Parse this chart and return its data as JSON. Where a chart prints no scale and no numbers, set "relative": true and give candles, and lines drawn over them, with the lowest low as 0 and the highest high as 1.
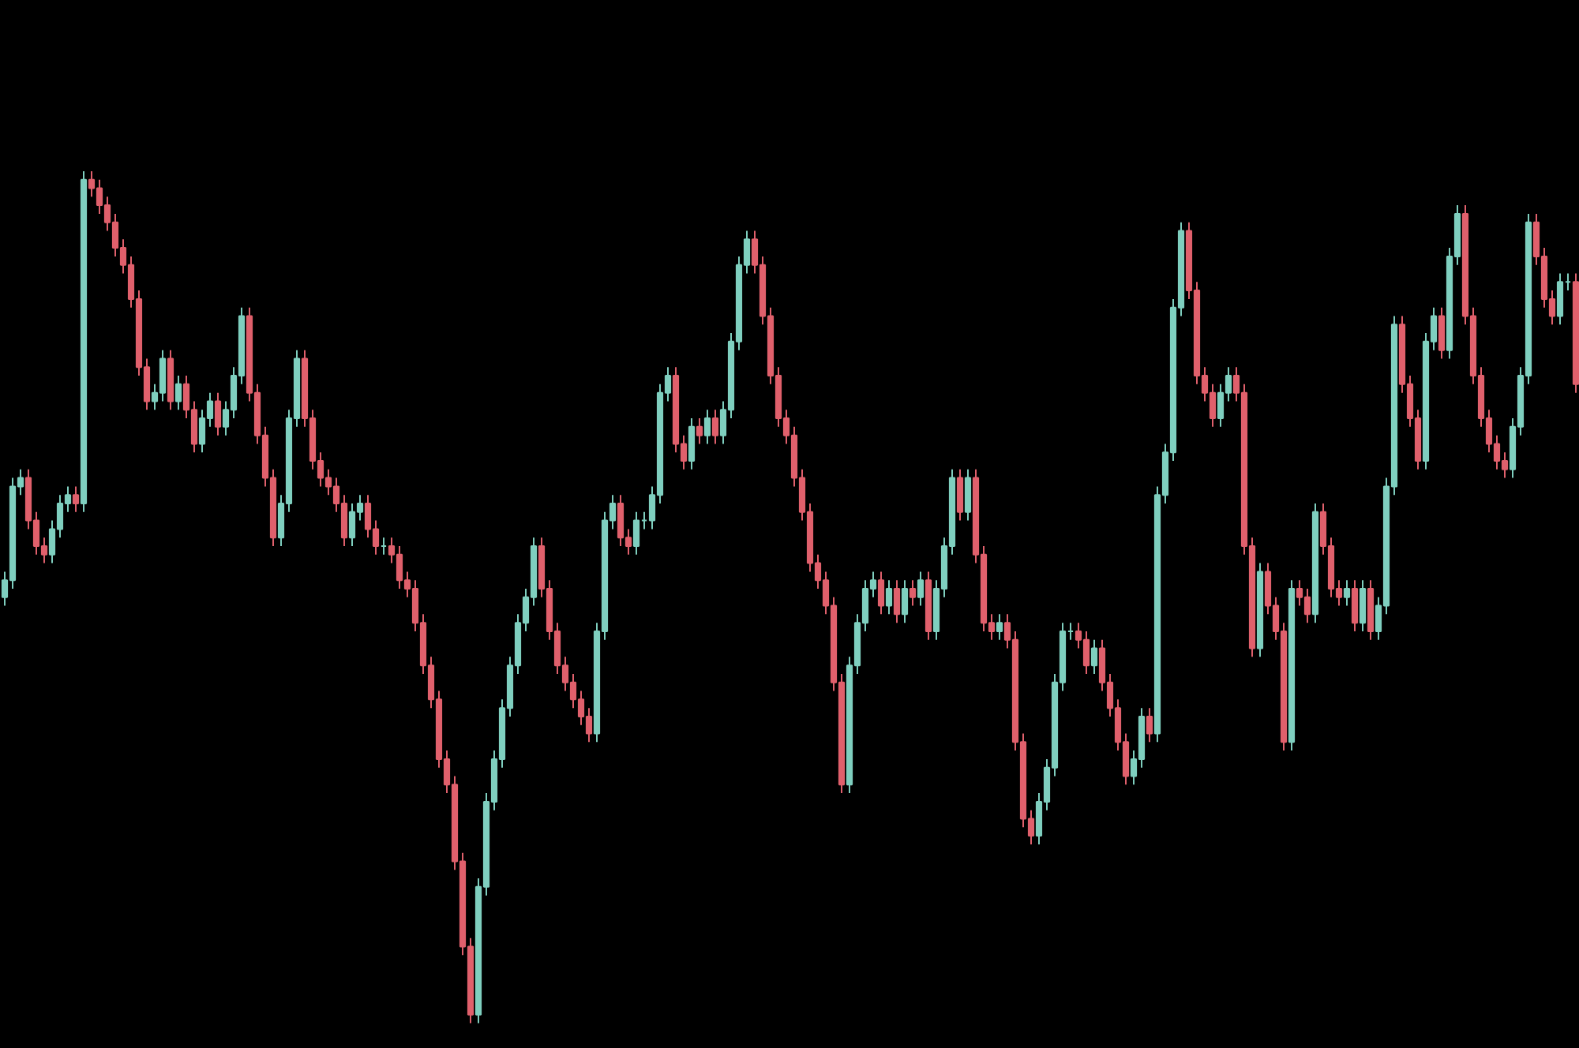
{
  "chart_data": {
    "type": "candlestick",
    "relative": true,
    "tick_labels": false,
    "categories": [
      null,
      null,
      null,
      null,
      null,
      null,
      null,
      null,
      null,
      null,
      null,
      null,
      null,
      null,
      null,
      null,
      null,
      null,
      null,
      null,
      null,
      null,
      null,
      null,
      null,
      null,
      null,
      null,
      null,
      null,
      null,
      null,
      null,
      null,
      null,
      null,
      null,
      null,
      null,
      null,
      null,
      null,
      null,
      null,
      null,
      null,
      null,
      null,
      null,
      null,
      null,
      null,
      null,
      null,
      null,
      null,
      null,
      null,
      null,
      null,
      null,
      null,
      null,
      null,
      null,
      null,
      null,
      null,
      null,
      null,
      null,
      null,
      null,
      null,
      null,
      null,
      null,
      null,
      null,
      null,
      null,
      null,
      null,
      null,
      null,
      null,
      null,
      null,
      null,
      null,
      null,
      null,
      null,
      null,
      null,
      null,
      null,
      null,
      null,
      null,
      null,
      null,
      null,
      null,
      null,
      null,
      null,
      null,
      null,
      null,
      null,
      null,
      null,
      null,
      null,
      null,
      null,
      null,
      null,
      null,
      null,
      null,
      null,
      null,
      null,
      null,
      null,
      null,
      null,
      null,
      null,
      null,
      null,
      null,
      null,
      null,
      null,
      null,
      null,
      null,
      null,
      null,
      null,
      null,
      null,
      null,
      null,
      null,
      null,
      null,
      null,
      null,
      null,
      null,
      null,
      null,
      null,
      null,
      null,
      null,
      null,
      null,
      null,
      null,
      null,
      null,
      null,
      null,
      null,
      null,
      null,
      null,
      null,
      null,
      null,
      null,
      null,
      null,
      null,
      null,
      null,
      null,
      null,
      null,
      null,
      null,
      null,
      null,
      null,
      null,
      null,
      null,
      null,
      null,
      null,
      null,
      null,
      null,
      null,
      null
    ],
    "ohlc": [
      [
        0.5,
        0.53,
        0.49,
        0.52
      ],
      [
        0.52,
        0.64,
        0.51,
        0.63
      ],
      [
        0.63,
        0.65,
        0.62,
        0.64
      ],
      [
        0.64,
        0.65,
        0.58,
        0.59
      ],
      [
        0.59,
        0.6,
        0.55,
        0.56
      ],
      [
        0.56,
        0.57,
        0.54,
        0.55
      ],
      [
        0.55,
        0.59,
        0.54,
        0.58
      ],
      [
        0.58,
        0.62,
        0.57,
        0.61
      ],
      [
        0.61,
        0.63,
        0.6,
        0.62
      ],
      [
        0.62,
        0.63,
        0.6,
        0.61
      ],
      [
        0.61,
        1.0,
        0.6,
        0.99
      ],
      [
        0.99,
        1.0,
        0.97,
        0.98
      ],
      [
        0.98,
        0.99,
        0.95,
        0.96
      ],
      [
        0.96,
        0.97,
        0.93,
        0.94
      ],
      [
        0.94,
        0.95,
        0.9,
        0.91
      ],
      [
        0.91,
        0.92,
        0.88,
        0.89
      ],
      [
        0.89,
        0.9,
        0.84,
        0.85
      ],
      [
        0.85,
        0.86,
        0.76,
        0.77
      ],
      [
        0.77,
        0.78,
        0.72,
        0.73
      ],
      [
        0.73,
        0.75,
        0.72,
        0.74
      ],
      [
        0.74,
        0.79,
        0.73,
        0.78
      ],
      [
        0.78,
        0.79,
        0.72,
        0.73
      ],
      [
        0.73,
        0.76,
        0.72,
        0.75
      ],
      [
        0.75,
        0.76,
        0.71,
        0.72
      ],
      [
        0.72,
        0.73,
        0.67,
        0.68
      ],
      [
        0.68,
        0.72,
        0.67,
        0.71
      ],
      [
        0.71,
        0.74,
        0.7,
        0.73
      ],
      [
        0.73,
        0.74,
        0.69,
        0.7
      ],
      [
        0.7,
        0.73,
        0.69,
        0.72
      ],
      [
        0.72,
        0.77,
        0.71,
        0.76
      ],
      [
        0.76,
        0.84,
        0.75,
        0.83
      ],
      [
        0.83,
        0.84,
        0.73,
        0.74
      ],
      [
        0.74,
        0.75,
        0.68,
        0.69
      ],
      [
        0.69,
        0.7,
        0.63,
        0.64
      ],
      [
        0.64,
        0.65,
        0.56,
        0.57
      ],
      [
        0.57,
        0.62,
        0.56,
        0.61
      ],
      [
        0.61,
        0.72,
        0.6,
        0.71
      ],
      [
        0.71,
        0.79,
        0.7,
        0.78
      ],
      [
        0.78,
        0.79,
        0.7,
        0.71
      ],
      [
        0.71,
        0.72,
        0.65,
        0.66
      ],
      [
        0.66,
        0.67,
        0.63,
        0.64
      ],
      [
        0.64,
        0.65,
        0.62,
        0.63
      ],
      [
        0.63,
        0.64,
        0.6,
        0.61
      ],
      [
        0.61,
        0.62,
        0.56,
        0.57
      ],
      [
        0.57,
        0.61,
        0.56,
        0.6
      ],
      [
        0.6,
        0.62,
        0.59,
        0.61
      ],
      [
        0.61,
        0.62,
        0.57,
        0.58
      ],
      [
        0.58,
        0.59,
        0.55,
        0.56
      ],
      [
        0.56,
        0.57,
        0.55,
        0.56
      ],
      [
        0.56,
        0.57,
        0.54,
        0.55
      ],
      [
        0.55,
        0.56,
        0.51,
        0.52
      ],
      [
        0.52,
        0.53,
        0.5,
        0.51
      ],
      [
        0.51,
        0.52,
        0.46,
        0.47
      ],
      [
        0.47,
        0.48,
        0.41,
        0.42
      ],
      [
        0.42,
        0.43,
        0.37,
        0.38
      ],
      [
        0.38,
        0.39,
        0.3,
        0.31
      ],
      [
        0.31,
        0.32,
        0.27,
        0.28
      ],
      [
        0.28,
        0.29,
        0.18,
        0.19
      ],
      [
        0.19,
        0.2,
        0.08,
        0.09
      ],
      [
        0.09,
        0.1,
        0.0,
        0.01
      ],
      [
        0.01,
        0.17,
        0.0,
        0.16
      ],
      [
        0.16,
        0.27,
        0.15,
        0.26
      ],
      [
        0.26,
        0.32,
        0.25,
        0.31
      ],
      [
        0.31,
        0.38,
        0.3,
        0.37
      ],
      [
        0.37,
        0.43,
        0.36,
        0.42
      ],
      [
        0.42,
        0.48,
        0.41,
        0.47
      ],
      [
        0.47,
        0.51,
        0.46,
        0.5
      ],
      [
        0.5,
        0.57,
        0.49,
        0.56
      ],
      [
        0.56,
        0.57,
        0.5,
        0.51
      ],
      [
        0.51,
        0.52,
        0.45,
        0.46
      ],
      [
        0.46,
        0.47,
        0.41,
        0.42
      ],
      [
        0.42,
        0.43,
        0.39,
        0.4
      ],
      [
        0.4,
        0.41,
        0.37,
        0.38
      ],
      [
        0.38,
        0.39,
        0.35,
        0.36
      ],
      [
        0.36,
        0.37,
        0.33,
        0.34
      ],
      [
        0.34,
        0.47,
        0.33,
        0.46
      ],
      [
        0.46,
        0.6,
        0.45,
        0.59
      ],
      [
        0.59,
        0.62,
        0.58,
        0.61
      ],
      [
        0.61,
        0.62,
        0.56,
        0.57
      ],
      [
        0.57,
        0.58,
        0.55,
        0.56
      ],
      [
        0.56,
        0.6,
        0.55,
        0.59
      ],
      [
        0.59,
        0.6,
        0.58,
        0.59
      ],
      [
        0.59,
        0.63,
        0.58,
        0.62
      ],
      [
        0.62,
        0.75,
        0.61,
        0.74
      ],
      [
        0.74,
        0.77,
        0.73,
        0.76
      ],
      [
        0.76,
        0.77,
        0.67,
        0.68
      ],
      [
        0.68,
        0.69,
        0.65,
        0.66
      ],
      [
        0.66,
        0.71,
        0.65,
        0.7
      ],
      [
        0.7,
        0.71,
        0.68,
        0.69
      ],
      [
        0.69,
        0.72,
        0.68,
        0.71
      ],
      [
        0.71,
        0.72,
        0.68,
        0.69
      ],
      [
        0.69,
        0.73,
        0.68,
        0.72
      ],
      [
        0.72,
        0.81,
        0.71,
        0.8
      ],
      [
        0.8,
        0.9,
        0.79,
        0.89
      ],
      [
        0.89,
        0.93,
        0.88,
        0.92
      ],
      [
        0.92,
        0.93,
        0.88,
        0.89
      ],
      [
        0.89,
        0.9,
        0.82,
        0.83
      ],
      [
        0.83,
        0.84,
        0.75,
        0.76
      ],
      [
        0.76,
        0.77,
        0.7,
        0.71
      ],
      [
        0.71,
        0.72,
        0.68,
        0.69
      ],
      [
        0.69,
        0.7,
        0.63,
        0.64
      ],
      [
        0.64,
        0.65,
        0.59,
        0.6
      ],
      [
        0.6,
        0.61,
        0.53,
        0.54
      ],
      [
        0.54,
        0.55,
        0.51,
        0.52
      ],
      [
        0.52,
        0.53,
        0.48,
        0.49
      ],
      [
        0.49,
        0.5,
        0.39,
        0.4
      ],
      [
        0.4,
        0.41,
        0.27,
        0.28
      ],
      [
        0.28,
        0.43,
        0.27,
        0.42
      ],
      [
        0.42,
        0.48,
        0.41,
        0.47
      ],
      [
        0.47,
        0.52,
        0.46,
        0.51
      ],
      [
        0.51,
        0.53,
        0.5,
        0.52
      ],
      [
        0.52,
        0.53,
        0.48,
        0.49
      ],
      [
        0.49,
        0.52,
        0.48,
        0.51
      ],
      [
        0.51,
        0.52,
        0.47,
        0.48
      ],
      [
        0.48,
        0.52,
        0.47,
        0.51
      ],
      [
        0.51,
        0.52,
        0.49,
        0.5
      ],
      [
        0.5,
        0.53,
        0.49,
        0.52
      ],
      [
        0.52,
        0.53,
        0.45,
        0.46
      ],
      [
        0.46,
        0.52,
        0.45,
        0.51
      ],
      [
        0.51,
        0.57,
        0.5,
        0.56
      ],
      [
        0.56,
        0.65,
        0.55,
        0.64
      ],
      [
        0.64,
        0.65,
        0.59,
        0.6
      ],
      [
        0.6,
        0.65,
        0.59,
        0.64
      ],
      [
        0.64,
        0.65,
        0.54,
        0.55
      ],
      [
        0.55,
        0.56,
        0.46,
        0.47
      ],
      [
        0.47,
        0.48,
        0.45,
        0.46
      ],
      [
        0.46,
        0.48,
        0.45,
        0.47
      ],
      [
        0.47,
        0.48,
        0.44,
        0.45
      ],
      [
        0.45,
        0.46,
        0.32,
        0.33
      ],
      [
        0.33,
        0.34,
        0.23,
        0.24
      ],
      [
        0.24,
        0.25,
        0.21,
        0.22
      ],
      [
        0.22,
        0.27,
        0.21,
        0.26
      ],
      [
        0.26,
        0.31,
        0.25,
        0.3
      ],
      [
        0.3,
        0.41,
        0.29,
        0.4
      ],
      [
        0.4,
        0.47,
        0.39,
        0.46
      ],
      [
        0.46,
        0.47,
        0.45,
        0.46
      ],
      [
        0.46,
        0.47,
        0.44,
        0.45
      ],
      [
        0.45,
        0.46,
        0.41,
        0.42
      ],
      [
        0.42,
        0.45,
        0.41,
        0.44
      ],
      [
        0.44,
        0.45,
        0.39,
        0.4
      ],
      [
        0.4,
        0.41,
        0.36,
        0.37
      ],
      [
        0.37,
        0.38,
        0.32,
        0.33
      ],
      [
        0.33,
        0.34,
        0.28,
        0.29
      ],
      [
        0.29,
        0.32,
        0.28,
        0.31
      ],
      [
        0.31,
        0.37,
        0.3,
        0.36
      ],
      [
        0.36,
        0.37,
        0.33,
        0.34
      ],
      [
        0.34,
        0.63,
        0.33,
        0.62
      ],
      [
        0.62,
        0.68,
        0.61,
        0.67
      ],
      [
        0.67,
        0.85,
        0.66,
        0.84
      ],
      [
        0.84,
        0.94,
        0.83,
        0.93
      ],
      [
        0.93,
        0.94,
        0.85,
        0.86
      ],
      [
        0.86,
        0.87,
        0.75,
        0.76
      ],
      [
        0.76,
        0.77,
        0.73,
        0.74
      ],
      [
        0.74,
        0.75,
        0.7,
        0.71
      ],
      [
        0.71,
        0.75,
        0.7,
        0.74
      ],
      [
        0.74,
        0.77,
        0.73,
        0.76
      ],
      [
        0.76,
        0.77,
        0.73,
        0.74
      ],
      [
        0.74,
        0.75,
        0.55,
        0.56
      ],
      [
        0.56,
        0.57,
        0.43,
        0.44
      ],
      [
        0.44,
        0.54,
        0.43,
        0.53
      ],
      [
        0.53,
        0.54,
        0.48,
        0.49
      ],
      [
        0.49,
        0.5,
        0.45,
        0.46
      ],
      [
        0.46,
        0.47,
        0.32,
        0.33
      ],
      [
        0.33,
        0.52,
        0.32,
        0.51
      ],
      [
        0.51,
        0.52,
        0.49,
        0.5
      ],
      [
        0.5,
        0.51,
        0.47,
        0.48
      ],
      [
        0.48,
        0.61,
        0.47,
        0.6
      ],
      [
        0.6,
        0.61,
        0.55,
        0.56
      ],
      [
        0.56,
        0.57,
        0.5,
        0.51
      ],
      [
        0.51,
        0.52,
        0.49,
        0.5
      ],
      [
        0.5,
        0.52,
        0.49,
        0.51
      ],
      [
        0.51,
        0.52,
        0.46,
        0.47
      ],
      [
        0.47,
        0.52,
        0.46,
        0.51
      ],
      [
        0.51,
        0.52,
        0.45,
        0.46
      ],
      [
        0.46,
        0.5,
        0.45,
        0.49
      ],
      [
        0.49,
        0.64,
        0.48,
        0.63
      ],
      [
        0.63,
        0.83,
        0.62,
        0.82
      ],
      [
        0.82,
        0.83,
        0.74,
        0.75
      ],
      [
        0.75,
        0.76,
        0.7,
        0.71
      ],
      [
        0.71,
        0.72,
        0.65,
        0.66
      ],
      [
        0.66,
        0.81,
        0.65,
        0.8
      ],
      [
        0.8,
        0.84,
        0.79,
        0.83
      ],
      [
        0.83,
        0.84,
        0.78,
        0.79
      ],
      [
        0.79,
        0.91,
        0.78,
        0.9
      ],
      [
        0.9,
        0.96,
        0.89,
        0.95
      ],
      [
        0.95,
        0.96,
        0.82,
        0.83
      ],
      [
        0.83,
        0.84,
        0.75,
        0.76
      ],
      [
        0.76,
        0.77,
        0.7,
        0.71
      ],
      [
        0.71,
        0.72,
        0.67,
        0.68
      ],
      [
        0.68,
        0.69,
        0.65,
        0.66
      ],
      [
        0.66,
        0.67,
        0.64,
        0.65
      ],
      [
        0.65,
        0.71,
        0.64,
        0.7
      ],
      [
        0.7,
        0.77,
        0.69,
        0.76
      ],
      [
        0.76,
        0.95,
        0.75,
        0.94
      ],
      [
        0.94,
        0.95,
        0.89,
        0.9
      ],
      [
        0.9,
        0.91,
        0.84,
        0.85
      ],
      [
        0.85,
        0.86,
        0.82,
        0.83
      ],
      [
        0.83,
        0.88,
        0.82,
        0.87
      ],
      [
        0.87,
        0.88,
        0.86,
        0.87
      ],
      [
        0.87,
        0.88,
        0.74,
        0.75
      ]
    ],
    "colors": [
      "#7fcfbf",
      "#7fcfbf",
      "#7fcfbf",
      "#e0606c",
      "#e0606c",
      "#e0606c",
      "#7fcfbf",
      "#7fcfbf",
      "#7fcfbf",
      "#e0606c",
      "#7fcfbf",
      "#e0606c",
      "#e0606c",
      "#e0606c",
      "#e0606c",
      "#e0606c",
      "#e0606c",
      "#e0606c",
      "#e0606c",
      "#7fcfbf",
      "#7fcfbf",
      "#e0606c",
      "#7fcfbf",
      "#e0606c",
      "#e0606c",
      "#7fcfbf",
      "#7fcfbf",
      "#e0606c",
      "#7fcfbf",
      "#7fcfbf",
      "#7fcfbf",
      "#e0606c",
      "#e0606c",
      "#e0606c",
      "#e0606c",
      "#7fcfbf",
      "#7fcfbf",
      "#7fcfbf",
      "#e0606c",
      "#e0606c",
      "#e0606c",
      "#e0606c",
      "#e0606c",
      "#e0606c",
      "#7fcfbf",
      "#7fcfbf",
      "#e0606c",
      "#e0606c",
      "#7fcfbf",
      "#e0606c",
      "#e0606c",
      "#e0606c",
      "#e0606c",
      "#e0606c",
      "#e0606c",
      "#e0606c",
      "#e0606c",
      "#e0606c",
      "#e0606c",
      "#e0606c",
      "#7fcfbf",
      "#7fcfbf",
      "#7fcfbf",
      "#7fcfbf",
      "#7fcfbf",
      "#7fcfbf",
      "#7fcfbf",
      "#7fcfbf",
      "#e0606c",
      "#e0606c",
      "#e0606c",
      "#e0606c",
      "#e0606c",
      "#e0606c",
      "#e0606c",
      "#7fcfbf",
      "#7fcfbf",
      "#7fcfbf",
      "#e0606c",
      "#e0606c",
      "#7fcfbf",
      "#7fcfbf",
      "#7fcfbf",
      "#7fcfbf",
      "#7fcfbf",
      "#e0606c",
      "#e0606c",
      "#7fcfbf",
      "#e0606c",
      "#7fcfbf",
      "#e0606c",
      "#7fcfbf",
      "#7fcfbf",
      "#7fcfbf",
      "#7fcfbf",
      "#e0606c",
      "#e0606c",
      "#e0606c",
      "#e0606c",
      "#e0606c",
      "#e0606c",
      "#e0606c",
      "#e0606c",
      "#e0606c",
      "#e0606c",
      "#e0606c",
      "#e0606c",
      "#7fcfbf",
      "#7fcfbf",
      "#7fcfbf",
      "#7fcfbf",
      "#e0606c",
      "#7fcfbf",
      "#e0606c",
      "#7fcfbf",
      "#e0606c",
      "#7fcfbf",
      "#e0606c",
      "#7fcfbf",
      "#7fcfbf",
      "#7fcfbf",
      "#e0606c",
      "#7fcfbf",
      "#e0606c",
      "#e0606c",
      "#e0606c",
      "#7fcfbf",
      "#e0606c",
      "#e0606c",
      "#e0606c",
      "#e0606c",
      "#7fcfbf",
      "#7fcfbf",
      "#7fcfbf",
      "#7fcfbf",
      "#7fcfbf",
      "#e0606c",
      "#e0606c",
      "#7fcfbf",
      "#e0606c",
      "#e0606c",
      "#e0606c",
      "#e0606c",
      "#7fcfbf",
      "#7fcfbf",
      "#e0606c",
      "#7fcfbf",
      "#7fcfbf",
      "#7fcfbf",
      "#7fcfbf",
      "#e0606c",
      "#e0606c",
      "#e0606c",
      "#e0606c",
      "#7fcfbf",
      "#7fcfbf",
      "#e0606c",
      "#e0606c",
      "#e0606c",
      "#7fcfbf",
      "#e0606c",
      "#e0606c",
      "#e0606c",
      "#7fcfbf",
      "#e0606c",
      "#e0606c",
      "#7fcfbf",
      "#e0606c",
      "#e0606c",
      "#e0606c",
      "#7fcfbf",
      "#e0606c",
      "#7fcfbf",
      "#e0606c",
      "#7fcfbf",
      "#7fcfbf",
      "#7fcfbf",
      "#e0606c",
      "#e0606c",
      "#e0606c",
      "#7fcfbf",
      "#7fcfbf",
      "#e0606c",
      "#7fcfbf",
      "#7fcfbf",
      "#e0606c",
      "#e0606c",
      "#e0606c",
      "#e0606c",
      "#e0606c",
      "#e0606c",
      "#7fcfbf",
      "#7fcfbf",
      "#7fcfbf",
      "#e0606c",
      "#e0606c",
      "#e0606c",
      "#7fcfbf",
      "#7fcfbf",
      "#e0606c"
    ]
  }
}
